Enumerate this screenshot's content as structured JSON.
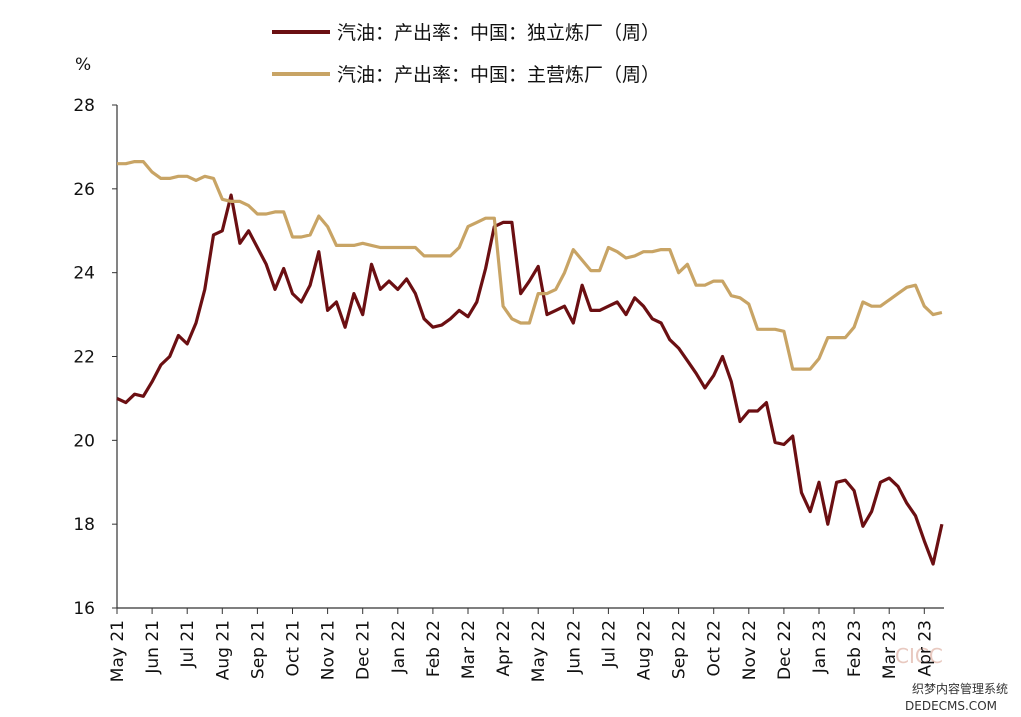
{
  "chart_data": {
    "type": "line",
    "y_unit": "%",
    "x": [
      "May 21",
      "May 21",
      "May 21",
      "May 21",
      "Jun 21",
      "Jun 21",
      "Jun 21",
      "Jun 21",
      "Jul 21",
      "Jul 21",
      "Jul 21",
      "Jul 21",
      "Aug 21",
      "Aug 21",
      "Aug 21",
      "Aug 21",
      "Sep 21",
      "Sep 21",
      "Sep 21",
      "Sep 21",
      "Oct 21",
      "Oct 21",
      "Oct 21",
      "Oct 21",
      "Nov 21",
      "Nov 21",
      "Nov 21",
      "Nov 21",
      "Dec 21",
      "Dec 21",
      "Dec 21",
      "Dec 21",
      "Jan 22",
      "Jan 22",
      "Jan 22",
      "Jan 22",
      "Feb 22",
      "Feb 22",
      "Feb 22",
      "Feb 22",
      "Mar 22",
      "Mar 22",
      "Mar 22",
      "Mar 22",
      "Apr 22",
      "Apr 22",
      "Apr 22",
      "Apr 22",
      "May 22",
      "May 22",
      "May 22",
      "May 22",
      "Jun 22",
      "Jun 22",
      "Jun 22",
      "Jun 22",
      "Jul 22",
      "Jul 22",
      "Jul 22",
      "Jul 22",
      "Aug 22",
      "Aug 22",
      "Aug 22",
      "Aug 22",
      "Sep 22",
      "Sep 22",
      "Sep 22",
      "Sep 22",
      "Oct 22",
      "Oct 22",
      "Oct 22",
      "Oct 22",
      "Nov 22",
      "Nov 22",
      "Nov 22",
      "Nov 22",
      "Dec 22",
      "Dec 22",
      "Dec 22",
      "Dec 22",
      "Jan 23",
      "Jan 23",
      "Jan 23",
      "Jan 23",
      "Feb 23",
      "Feb 23",
      "Feb 23",
      "Feb 23",
      "Mar 23",
      "Mar 23",
      "Mar 23",
      "Mar 23",
      "Apr 23",
      "Apr 23",
      "Apr 23"
    ],
    "series": [
      {
        "name": "汽油：产出率：中国：独立炼厂（周）",
        "color": "#6b0f12",
        "values": [
          21.0,
          20.9,
          21.1,
          21.05,
          21.4,
          21.8,
          22.0,
          22.5,
          22.3,
          22.8,
          23.6,
          24.9,
          25.0,
          25.85,
          24.7,
          25.0,
          24.6,
          24.2,
          23.6,
          24.1,
          23.5,
          23.3,
          23.7,
          24.5,
          23.1,
          23.3,
          22.7,
          23.5,
          23.0,
          24.2,
          23.6,
          23.8,
          23.6,
          23.85,
          23.5,
          22.9,
          22.7,
          22.75,
          22.9,
          23.1,
          22.95,
          23.3,
          24.1,
          25.1,
          25.2,
          25.2,
          23.5,
          23.8,
          24.15,
          23.0,
          23.1,
          23.2,
          22.8,
          23.7,
          23.1,
          23.1,
          23.2,
          23.3,
          23.0,
          23.4,
          23.2,
          22.9,
          22.8,
          22.4,
          22.2,
          21.9,
          21.6,
          21.25,
          21.55,
          22.0,
          21.4,
          20.45,
          20.7,
          20.7,
          20.9,
          19.95,
          19.9,
          20.1,
          18.75,
          18.3,
          19.0,
          18.0,
          19.0,
          19.05,
          18.8,
          17.95,
          18.3,
          19.0,
          19.1,
          18.9,
          18.5,
          18.2,
          17.6,
          17.05,
          18.0
        ]
      },
      {
        "name": "汽油：产出率：中国：主营炼厂（周）",
        "color": "#c8a465",
        "values": [
          26.6,
          26.6,
          26.65,
          26.65,
          26.4,
          26.25,
          26.25,
          26.3,
          26.3,
          26.2,
          26.3,
          26.25,
          25.75,
          25.7,
          25.7,
          25.6,
          25.4,
          25.4,
          25.45,
          25.45,
          24.85,
          24.85,
          24.9,
          25.35,
          25.1,
          24.65,
          24.65,
          24.65,
          24.7,
          24.65,
          24.6,
          24.6,
          24.6,
          24.6,
          24.6,
          24.4,
          24.4,
          24.4,
          24.4,
          24.6,
          25.1,
          25.2,
          25.3,
          25.3,
          23.2,
          22.9,
          22.8,
          22.8,
          23.5,
          23.5,
          23.6,
          24.0,
          24.55,
          24.3,
          24.05,
          24.05,
          24.6,
          24.5,
          24.35,
          24.4,
          24.5,
          24.5,
          24.55,
          24.55,
          24.0,
          24.2,
          23.7,
          23.7,
          23.8,
          23.8,
          23.45,
          23.4,
          23.25,
          22.65,
          22.65,
          22.65,
          22.6,
          21.7,
          21.7,
          21.7,
          21.95,
          22.45,
          22.45,
          22.45,
          22.7,
          23.3,
          23.2,
          23.2,
          23.35,
          23.5,
          23.65,
          23.7,
          23.2,
          23.0,
          23.05
        ]
      }
    ],
    "ylim": [
      16,
      28
    ],
    "yticks": [
      16,
      18,
      20,
      22,
      24,
      26,
      28
    ],
    "grid": false,
    "watermark": [
      "CICC",
      "织梦内容管理系统",
      "DEDECMS.COM"
    ]
  }
}
